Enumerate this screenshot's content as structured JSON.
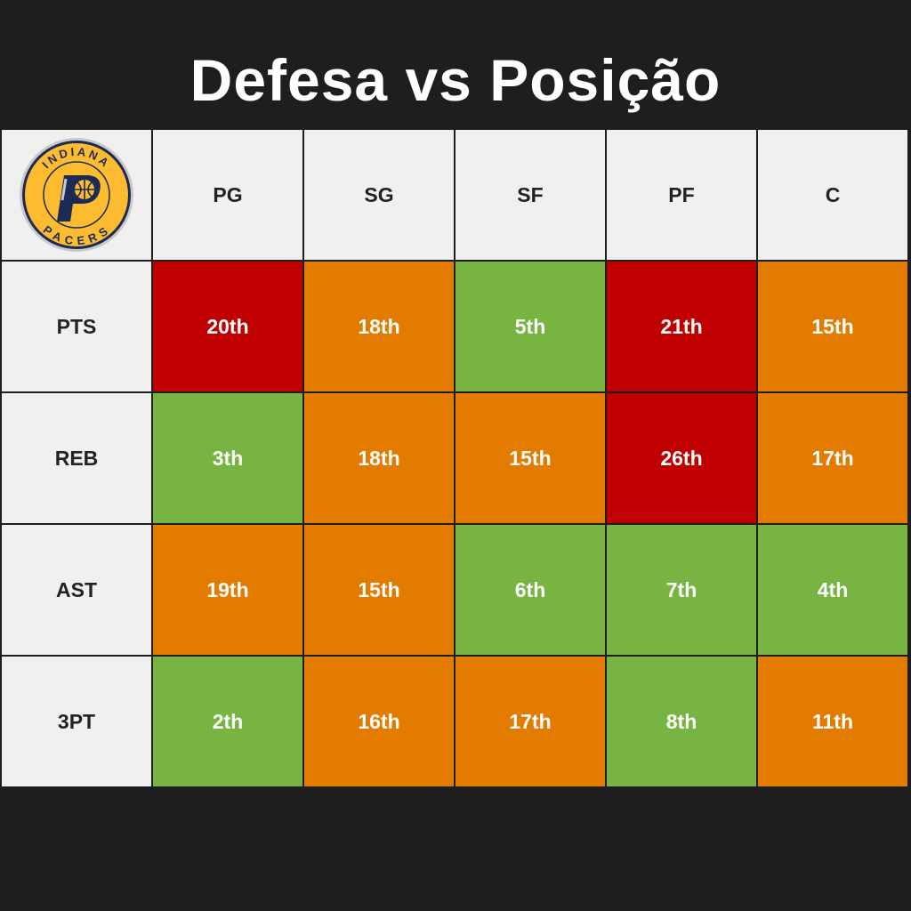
{
  "title": "Defesa vs Posição",
  "logo": {
    "top_text": "INDIANA",
    "bottom_text": "PACERS",
    "icon": "indiana-pacers-logo"
  },
  "colors": {
    "red": "#c00000",
    "orange": "#e27b00",
    "green": "#78b442",
    "header_bg": "#f0f0f0"
  },
  "chart_data": {
    "type": "table",
    "columns": [
      "PG",
      "SG",
      "SF",
      "PF",
      "C"
    ],
    "rows": [
      {
        "label": "PTS",
        "values": [
          "20th",
          "18th",
          "5th",
          "21th",
          "15th"
        ],
        "colors": [
          "red",
          "orange",
          "green",
          "red",
          "orange"
        ]
      },
      {
        "label": "REB",
        "values": [
          "3th",
          "18th",
          "15th",
          "26th",
          "17th"
        ],
        "colors": [
          "green",
          "orange",
          "orange",
          "red",
          "orange"
        ]
      },
      {
        "label": "AST",
        "values": [
          "19th",
          "15th",
          "6th",
          "7th",
          "4th"
        ],
        "colors": [
          "orange",
          "orange",
          "green",
          "green",
          "green"
        ]
      },
      {
        "label": "3PT",
        "values": [
          "2th",
          "16th",
          "17th",
          "8th",
          "11th"
        ],
        "colors": [
          "green",
          "orange",
          "orange",
          "green",
          "orange"
        ]
      }
    ]
  }
}
